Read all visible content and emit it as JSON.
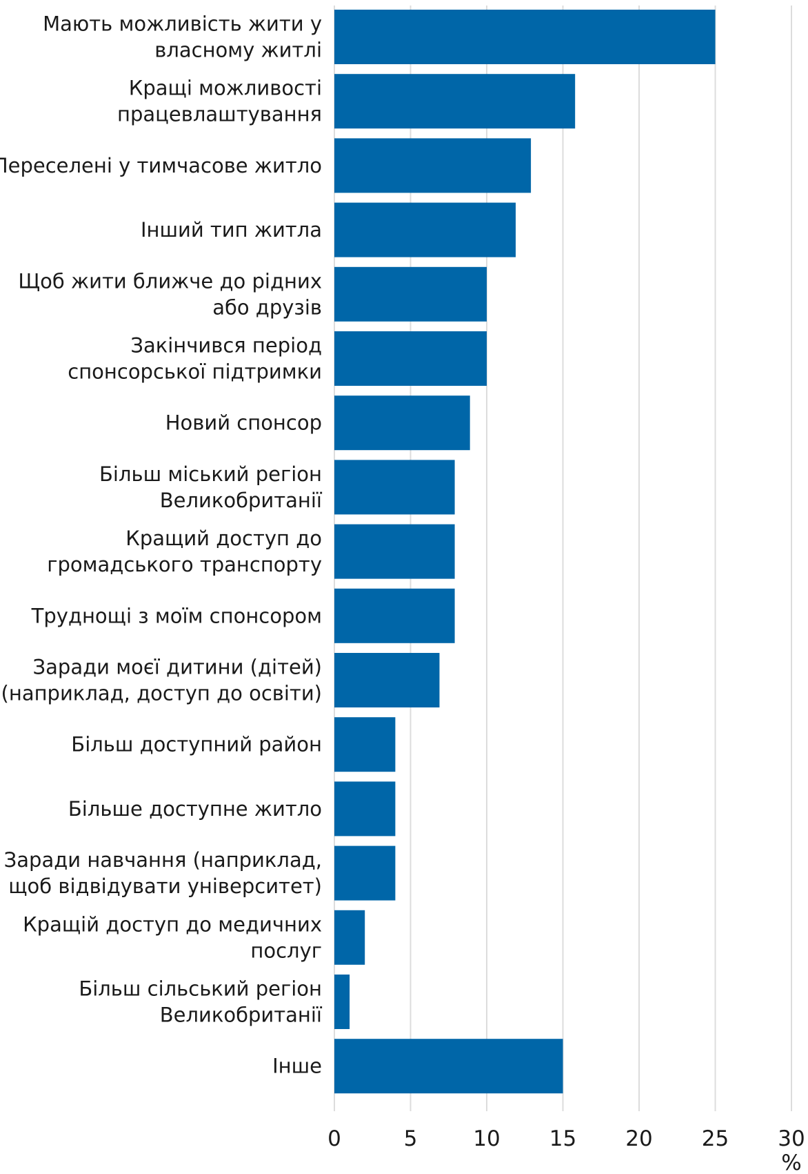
{
  "chart_data": {
    "type": "bar",
    "orientation": "horizontal",
    "categories": [
      [
        "Мають можливість жити у",
        "власному житлі"
      ],
      [
        "Кращі можливості",
        "працевлаштування"
      ],
      [
        "Переселені у тимчасове житло"
      ],
      [
        "Інший тип житла"
      ],
      [
        "Щоб жити ближче до рідних",
        "або друзів"
      ],
      [
        "Закінчився період",
        "спонсорської підтримки"
      ],
      [
        "Новий спонсор"
      ],
      [
        "Більш міський регіон",
        "Великобританії"
      ],
      [
        "Кращий доступ до",
        "громадського транспорту"
      ],
      [
        "Труднощі з моїм спонсором"
      ],
      [
        "Заради моєї дитини (дітей)",
        "(наприклад, доступ до освіти)"
      ],
      [
        "Більш доступний район"
      ],
      [
        "Більше доступне житло"
      ],
      [
        "Заради навчання (наприклад,",
        "щоб відвідувати університет)"
      ],
      [
        "Кращій доступ до медичних",
        "послуг"
      ],
      [
        "Більш сільський регіон",
        "Великобританії"
      ],
      [
        "Інше"
      ]
    ],
    "values": [
      25,
      15.8,
      12.9,
      11.9,
      10,
      10,
      8.9,
      7.9,
      7.9,
      7.9,
      6.9,
      4,
      4,
      4,
      2,
      1,
      15
    ],
    "xlim": [
      0,
      30
    ],
    "xticks": [
      "0",
      "5",
      "10",
      "15",
      "20",
      "25",
      "30"
    ],
    "xunit": "%",
    "grid": "vertical",
    "bar_color": "#0066a8"
  }
}
